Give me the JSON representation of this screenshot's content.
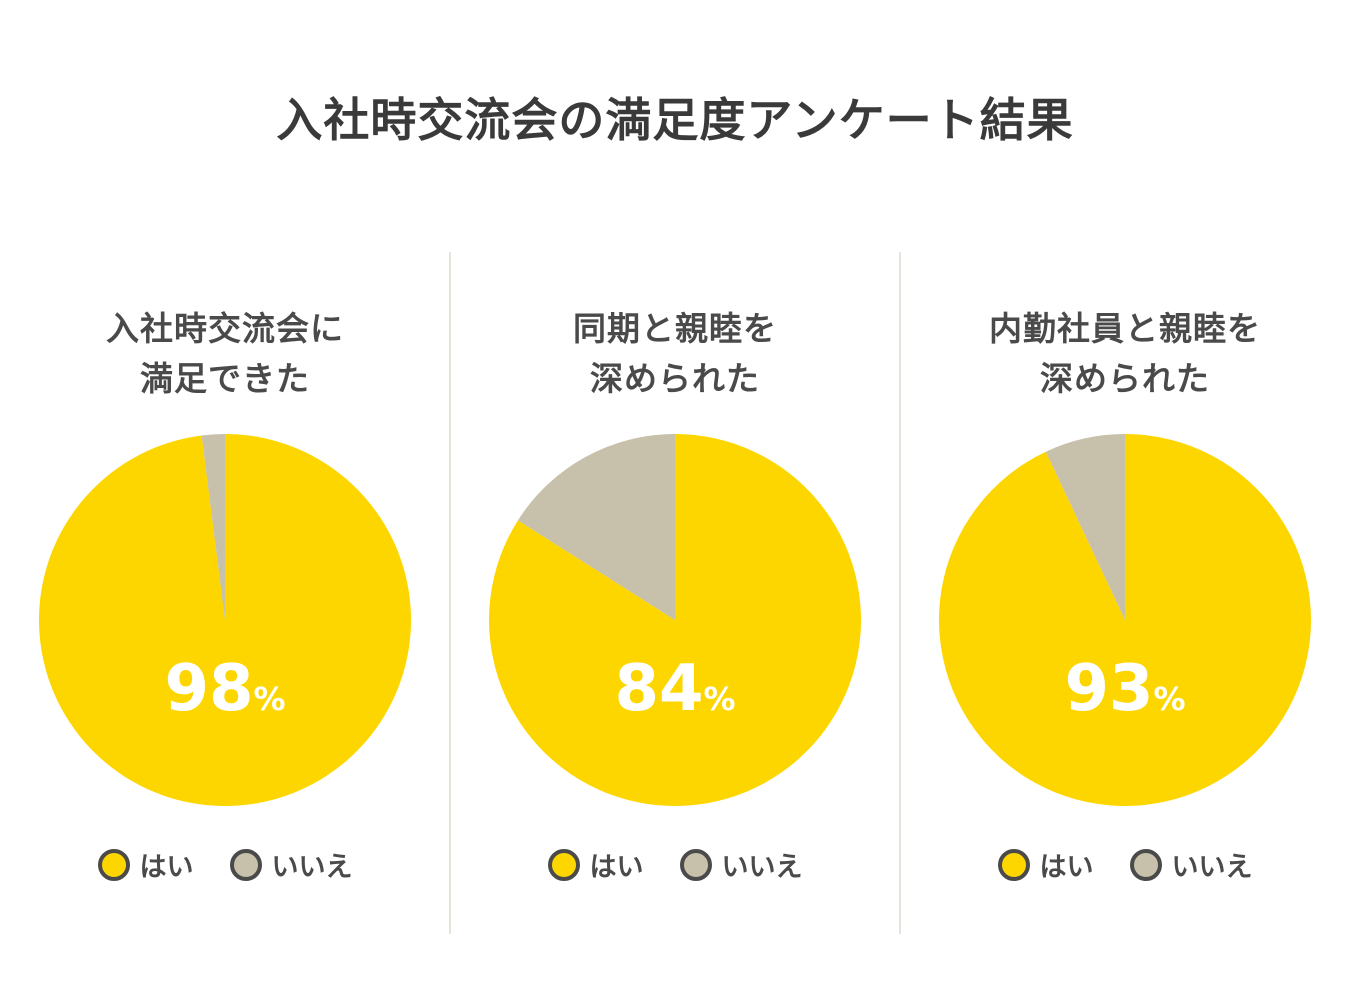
{
  "chart_data": [
    {
      "type": "pie",
      "title_lines": [
        "入社時交流会に",
        "満足できた"
      ],
      "categories": [
        "はい",
        "いいえ"
      ],
      "values": [
        98,
        2
      ],
      "label": "98",
      "unit": "%"
    },
    {
      "type": "pie",
      "title_lines": [
        "同期と親睦を",
        "深められた"
      ],
      "categories": [
        "はい",
        "いいえ"
      ],
      "values": [
        84,
        16
      ],
      "label": "84",
      "unit": "%"
    },
    {
      "type": "pie",
      "title_lines": [
        "内勤社員と親睦を",
        "深められた"
      ],
      "categories": [
        "はい",
        "いいえ"
      ],
      "values": [
        93,
        7
      ],
      "label": "93",
      "unit": "%"
    }
  ],
  "title": "入社時交流会の満足度アンケート結果",
  "legend": [
    "はい",
    "いいえ"
  ],
  "colors": {
    "yes": "#FDD600",
    "no": "#C7C0AB",
    "text": "#454545"
  }
}
